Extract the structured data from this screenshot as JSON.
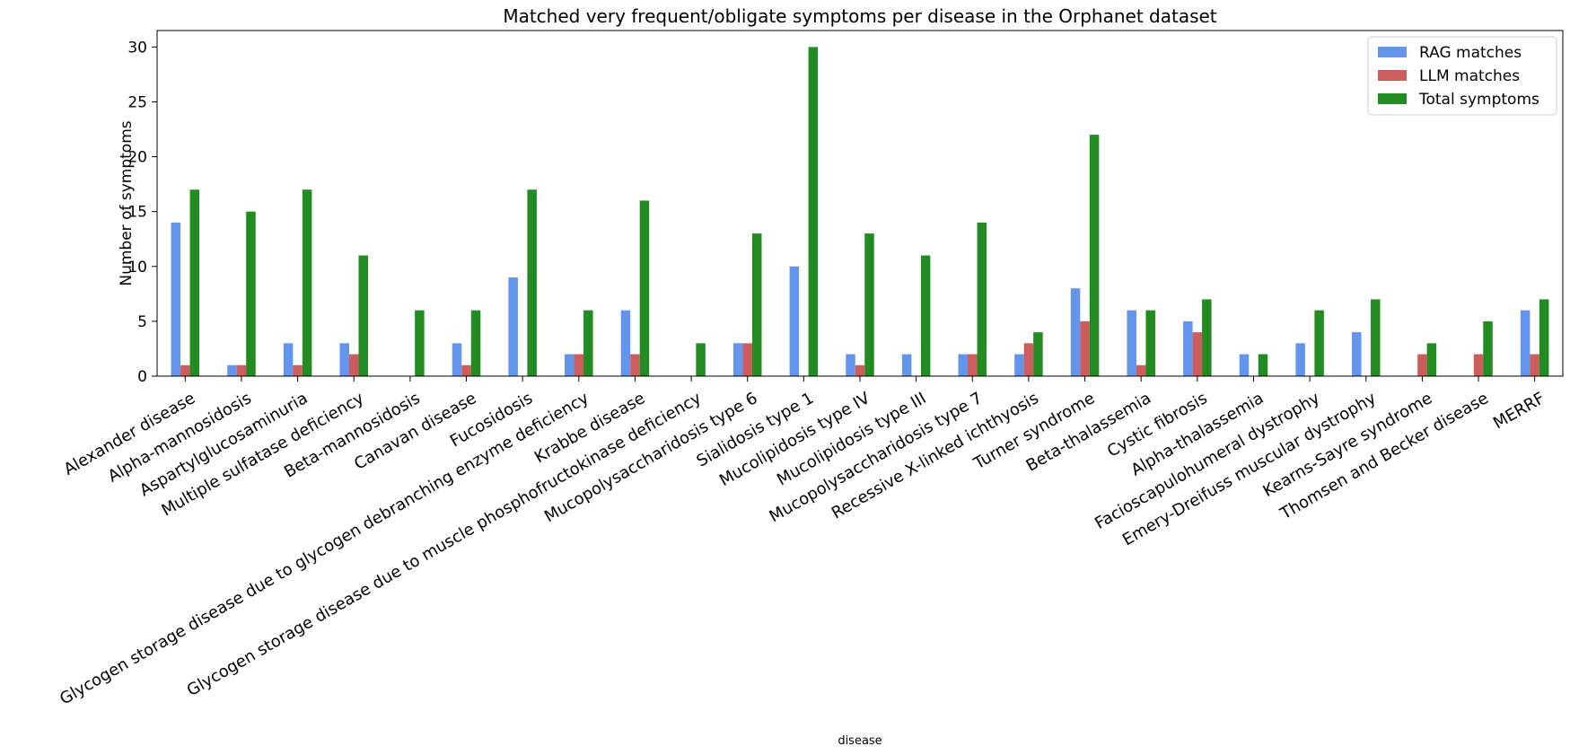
{
  "chart_data": {
    "type": "bar",
    "title": "Matched very frequent/obligate symptoms per disease in the Orphanet dataset",
    "xlabel": "disease",
    "ylabel": "Number of symptoms",
    "ylim": [
      0,
      31.5
    ],
    "yticks": [
      0,
      5,
      10,
      15,
      20,
      25,
      30
    ],
    "grid": false,
    "legend_position": "top-right",
    "categories": [
      "Alexander disease",
      "Alpha-mannosidosis",
      "Aspartylglucosaminuria",
      "Multiple sulfatase deficiency",
      "Beta-mannosidosis",
      "Canavan disease",
      "Fucosidosis",
      "Glycogen storage disease due to glycogen debranching enzyme deficiency",
      "Krabbe disease",
      "Glycogen storage disease due to muscle phosphofructokinase deficiency",
      "Mucopolysaccharidosis type 6",
      "Sialidosis type 1",
      "Mucolipidosis type IV",
      "Mucolipidosis type III",
      "Mucopolysaccharidosis type 7",
      "Recessive X-linked ichthyosis",
      "Turner syndrome",
      "Beta-thalassemia",
      "Cystic fibrosis",
      "Alpha-thalassemia",
      "Facioscapulohumeral dystrophy",
      "Emery-Dreifuss muscular dystrophy",
      "Kearns-Sayre syndrome",
      "Thomsen and Becker disease",
      "MERRF"
    ],
    "series": [
      {
        "name": "RAG matches",
        "color": "#6495ED",
        "values": [
          14,
          1,
          3,
          3,
          0,
          3,
          9,
          2,
          6,
          0,
          3,
          10,
          2,
          2,
          2,
          2,
          8,
          6,
          5,
          2,
          3,
          4,
          0,
          0,
          6
        ]
      },
      {
        "name": "LLM matches",
        "color": "#CD5C5C",
        "values": [
          1,
          1,
          1,
          2,
          0,
          1,
          0,
          2,
          2,
          0,
          3,
          0,
          1,
          0,
          2,
          3,
          5,
          1,
          4,
          0,
          0,
          0,
          2,
          2,
          2
        ]
      },
      {
        "name": "Total symptoms",
        "color": "#228B22",
        "values": [
          17,
          15,
          17,
          11,
          6,
          6,
          17,
          6,
          16,
          3,
          13,
          30,
          13,
          11,
          14,
          4,
          22,
          6,
          7,
          2,
          6,
          7,
          3,
          5,
          7
        ]
      }
    ]
  }
}
